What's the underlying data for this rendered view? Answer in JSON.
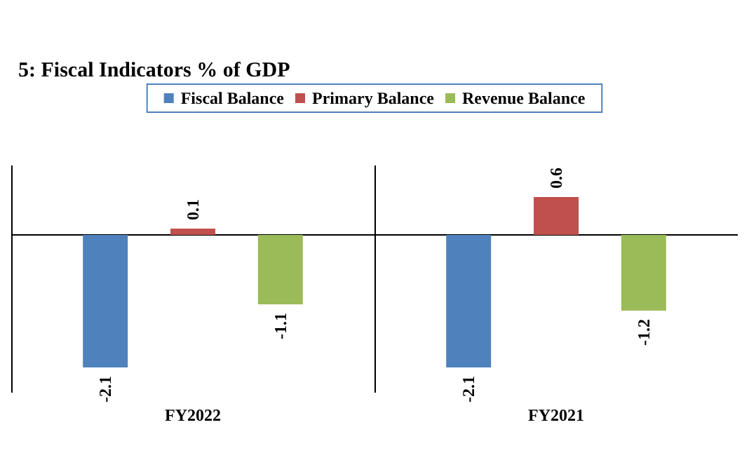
{
  "chart_data": {
    "type": "bar",
    "title": "5: Fiscal Indicators % of GDP",
    "categories": [
      "FY2022",
      "FY2021"
    ],
    "series": [
      {
        "name": "Fiscal Balance",
        "color": "#4f81bd",
        "values": [
          -2.1,
          -2.1
        ]
      },
      {
        "name": "Primary Balance",
        "color": "#c0504d",
        "values": [
          0.1,
          0.6
        ]
      },
      {
        "name": "Revenue Balance",
        "color": "#9bbb59",
        "values": [
          -1.1,
          -1.2
        ]
      }
    ],
    "data_labels": true,
    "legend": "top",
    "grid": false
  }
}
